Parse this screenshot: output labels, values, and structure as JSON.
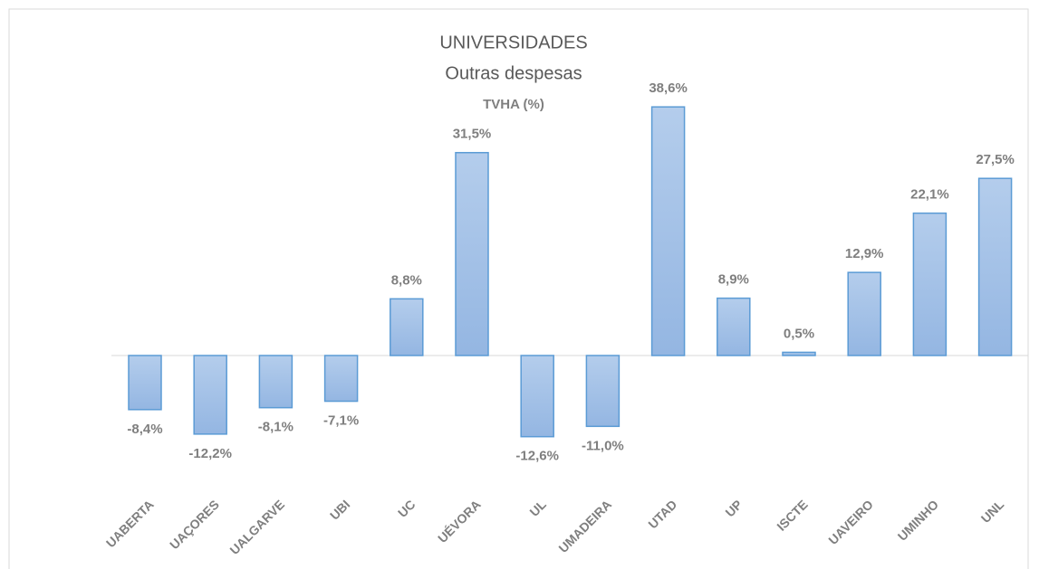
{
  "chart_data": {
    "type": "bar",
    "title": "UNIVERSIDADES",
    "subtitle": "Outras despesas",
    "unit_label": "TVHA (%)",
    "categories": [
      "UABERTA",
      "UAÇORES",
      "UALGARVE",
      "UBI",
      "UC",
      "UÉVORA",
      "UL",
      "UMADEIRA",
      "UTAD",
      "UP",
      "ISCTE",
      "UAVEIRO",
      "UMINHO",
      "UNL"
    ],
    "values": [
      -8.4,
      -12.2,
      -8.1,
      -7.1,
      8.8,
      31.5,
      -12.6,
      -11.0,
      38.6,
      8.9,
      0.5,
      12.9,
      22.1,
      27.5
    ],
    "value_labels": [
      "-8,4%",
      "-12,2%",
      "-8,1%",
      "-7,1%",
      "8,8%",
      "31,5%",
      "-12,6%",
      "-11,0%",
      "38,6%",
      "8,9%",
      "0,5%",
      "12,9%",
      "22,1%",
      "27,5%"
    ],
    "color": "#a4c2e8",
    "edge_color": "#5b9bd5"
  }
}
